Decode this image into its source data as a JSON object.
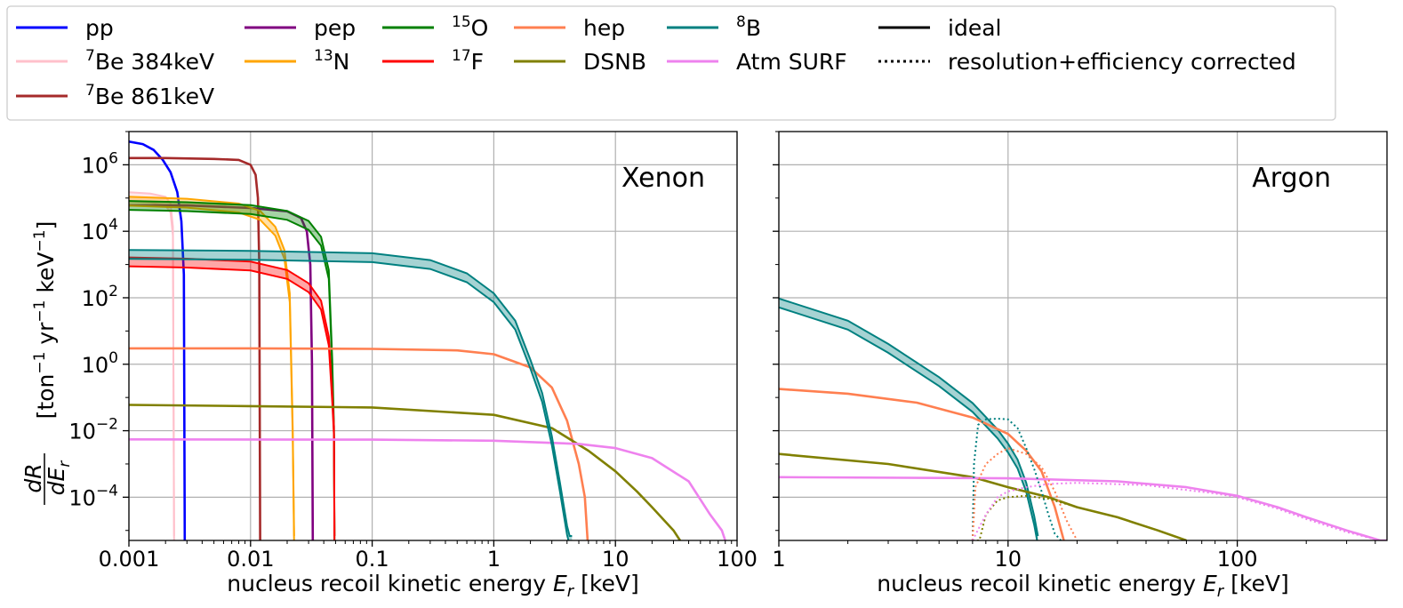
{
  "chart_data": [
    {
      "type": "line",
      "panel": "left",
      "title": "Xenon",
      "xlabel": "nucleus recoil kinetic energy E_r [keV]",
      "ylabel": "dR/dE_r [ton^-1 yr^-1 keV^-1]",
      "xscale": "log",
      "yscale": "log",
      "xlim": [
        0.001,
        100
      ],
      "ylim": [
        5e-06,
        10000000.0
      ],
      "xticks": [
        "0.001",
        "0.01",
        "0.1",
        "1",
        "10",
        "100"
      ],
      "yticks": [
        {
          "base": "10",
          "exp": "6"
        },
        {
          "base": "10",
          "exp": "4"
        },
        {
          "base": "10",
          "exp": "2"
        },
        {
          "base": "10",
          "exp": "0"
        },
        {
          "base": "10",
          "exp": "−2"
        },
        {
          "base": "10",
          "exp": "−4"
        }
      ],
      "grid": true,
      "series": [
        {
          "name": "pp",
          "color": "#0000ff",
          "x": [
            0.001,
            0.0013,
            0.0016,
            0.0019,
            0.0022,
            0.0025,
            0.0027,
            0.00283,
            0.00288
          ],
          "y": [
            5000000.0,
            4200000.0,
            2800000.0,
            1400000.0,
            600000.0,
            150000.0,
            20000.0,
            500.0,
            5e-06
          ]
        },
        {
          "name": "7Be 384keV",
          "color": "#ffc0cb",
          "band": true,
          "x": [
            0.001,
            0.0015,
            0.002,
            0.0022,
            0.0023,
            0.00235
          ],
          "y": [
            110000.0,
            100000.0,
            80000.0,
            50000.0,
            10000.0,
            5e-06
          ]
        },
        {
          "name": "7Be 861keV",
          "color": "#a52a2a",
          "x": [
            0.001,
            0.002,
            0.005,
            0.008,
            0.01,
            0.011,
            0.0115,
            0.0118,
            0.012
          ],
          "y": [
            1600000.0,
            1600000.0,
            1500000.0,
            1400000.0,
            1000000.0,
            500000.0,
            100000.0,
            1000.0,
            5e-06
          ]
        },
        {
          "name": "pep",
          "color": "#800080",
          "x": [
            0.001,
            0.003,
            0.01,
            0.02,
            0.026,
            0.029,
            0.031,
            0.032,
            0.0325
          ],
          "y": [
            60000.0,
            60000.0,
            50000.0,
            40000.0,
            25000.0,
            10000.0,
            1000.0,
            1,
            5e-06
          ]
        },
        {
          "name": "13N",
          "color": "#ffa500",
          "band": true,
          "x": [
            0.001,
            0.003,
            0.008,
            0.012,
            0.016,
            0.019,
            0.021,
            0.0222,
            0.0228
          ],
          "y": [
            80000.0,
            70000.0,
            50000.0,
            30000.0,
            10000.0,
            2000.0,
            100.0,
            0.01,
            5e-06
          ]
        },
        {
          "name": "15O",
          "color": "#008000",
          "band": true,
          "x": [
            0.001,
            0.003,
            0.01,
            0.02,
            0.03,
            0.038,
            0.044,
            0.047,
            0.0485,
            0.049
          ],
          "y": [
            60000.0,
            55000.0,
            45000.0,
            30000.0,
            15000.0,
            5000.0,
            500.0,
            1,
            0.01,
            5e-06
          ]
        },
        {
          "name": "17F",
          "color": "#ff0000",
          "band": true,
          "x": [
            0.001,
            0.003,
            0.01,
            0.02,
            0.03,
            0.038,
            0.044,
            0.047,
            0.0485,
            0.049
          ],
          "y": [
            1200.0,
            1100.0,
            900.0,
            500.0,
            200.0,
            60.0,
            5,
            0.1,
            0.01,
            5e-06
          ]
        },
        {
          "name": "hep",
          "color": "#ff7f50",
          "x": [
            0.001,
            0.01,
            0.1,
            0.5,
            1,
            2,
            3,
            4,
            5,
            5.6,
            5.9
          ],
          "y": [
            3,
            3,
            2.9,
            2.6,
            2,
            0.8,
            0.2,
            0.02,
            0.001,
            0.0001,
            5e-06
          ]
        },
        {
          "name": "DSNB",
          "color": "#808000",
          "x": [
            0.001,
            0.01,
            0.1,
            1,
            3,
            6,
            10,
            15,
            20,
            30,
            34
          ],
          "y": [
            0.06,
            0.055,
            0.05,
            0.03,
            0.012,
            0.0025,
            0.0006,
            0.00015,
            5e-05,
            1e-05,
            5e-06
          ]
        },
        {
          "name": "Atm SURF",
          "color": "#ee82ee",
          "x": [
            0.001,
            0.1,
            1,
            5,
            10,
            20,
            40,
            60,
            75,
            80
          ],
          "y": [
            0.0055,
            0.0054,
            0.005,
            0.004,
            0.003,
            0.0015,
            0.0003,
            3e-05,
            1e-05,
            5e-06
          ]
        },
        {
          "name": "8B",
          "color": "#008080",
          "band": true,
          "x": [
            0.001,
            0.01,
            0.1,
            0.3,
            0.6,
            1,
            1.5,
            2,
            2.5,
            3,
            3.5,
            4,
            4.2,
            4.4
          ],
          "y": [
            2000.0,
            1900.0,
            1600.0,
            1000.0,
            400.0,
            100.0,
            15.0,
            1,
            0.1,
            0.005,
            0.0002,
            1e-05,
            5e-06,
            5e-06
          ]
        }
      ]
    },
    {
      "type": "line",
      "panel": "right",
      "title": "Argon",
      "xlabel": "nucleus recoil kinetic energy E_r [keV]",
      "xscale": "log",
      "yscale": "log",
      "xlim": [
        1,
        450
      ],
      "ylim": [
        5e-06,
        10000000.0
      ],
      "xticks": [
        "1",
        "10",
        "100"
      ],
      "grid": true,
      "series": [
        {
          "name": "8B",
          "color": "#008080",
          "band": true,
          "x": [
            1,
            2,
            3,
            5,
            7,
            9,
            10,
            11,
            12,
            13,
            13.5
          ],
          "y": [
            70,
            15,
            3,
            0.3,
            0.05,
            0.008,
            0.003,
            0.001,
            0.0002,
            2e-05,
            5e-06
          ]
        },
        {
          "name": "hep",
          "color": "#ff7f50",
          "x": [
            1,
            2,
            4,
            7,
            10,
            12,
            14,
            16,
            17.5
          ],
          "y": [
            0.18,
            0.13,
            0.07,
            0.025,
            0.008,
            0.0025,
            0.0006,
            5e-05,
            5e-06
          ]
        },
        {
          "name": "DSNB",
          "color": "#808000",
          "x": [
            1,
            3,
            7,
            10,
            15,
            20,
            30,
            45,
            60
          ],
          "y": [
            0.002,
            0.001,
            0.0004,
            0.0002,
            0.0001,
            5e-05,
            2.5e-05,
            1e-05,
            5e-06
          ]
        },
        {
          "name": "Atm SURF",
          "color": "#ee82ee",
          "x": [
            1,
            10,
            30,
            60,
            100,
            150,
            200,
            300,
            420,
            450
          ],
          "y": [
            0.0004,
            0.00037,
            0.0003,
            0.0002,
            0.00011,
            5e-05,
            2.5e-05,
            1e-05,
            5e-06,
            5e-06
          ]
        },
        {
          "name": "8B corrected",
          "color": "#008080",
          "dotted": true,
          "x": [
            7,
            7.1,
            7.4,
            8,
            9,
            10,
            11,
            12,
            13,
            14,
            15,
            16,
            17
          ],
          "y": [
            5e-06,
            0.001,
            0.015,
            0.022,
            0.023,
            0.022,
            0.012,
            0.003,
            0.0007,
            0.00015,
            3e-05,
            8e-06,
            5e-06
          ]
        },
        {
          "name": "hep corrected",
          "color": "#ff7f50",
          "dotted": true,
          "x": [
            7,
            7.2,
            8,
            9,
            10,
            12,
            14,
            16,
            18,
            20
          ],
          "y": [
            5e-06,
            0.0002,
            0.001,
            0.002,
            0.003,
            0.002,
            0.0008,
            0.00015,
            2e-05,
            5e-06
          ]
        },
        {
          "name": "DSNB corrected",
          "color": "#808000",
          "dotted": true,
          "x": [
            7,
            7.5,
            8,
            9,
            10,
            12,
            15,
            20,
            30,
            45,
            60
          ],
          "y": [
            5e-06,
            5e-06,
            3e-05,
            8e-05,
            0.0001,
            0.00011,
            9e-05,
            5e-05,
            2.5e-05,
            1e-05,
            5e-06
          ]
        },
        {
          "name": "Atm SURF corrected",
          "color": "#ee82ee",
          "dotted": true,
          "x": [
            7,
            8,
            9,
            10,
            12,
            15,
            20,
            40,
            80,
            100,
            150,
            200,
            300,
            420
          ],
          "y": [
            5e-06,
            3e-05,
            0.0001,
            0.00015,
            0.0002,
            0.00025,
            0.00027,
            0.00023,
            0.00013,
            0.0001,
            4.5e-05,
            2.2e-05,
            9e-06,
            5e-06
          ]
        }
      ]
    }
  ],
  "legend": {
    "placement": "top",
    "items": [
      {
        "pre": "",
        "sup": "",
        "rest": "pp",
        "color": "#0000ff",
        "style": "solid"
      },
      {
        "pre": "",
        "sup": "7",
        "rest": "Be 384keV",
        "color": "#ffc0cb",
        "style": "solid"
      },
      {
        "pre": "",
        "sup": "7",
        "rest": "Be 861keV",
        "color": "#a52a2a",
        "style": "solid"
      },
      {
        "pre": "",
        "sup": "",
        "rest": "pep",
        "color": "#800080",
        "style": "solid"
      },
      {
        "pre": "",
        "sup": "13",
        "rest": "N",
        "color": "#ffa500",
        "style": "solid"
      },
      {
        "pre": "",
        "sup": "15",
        "rest": "O",
        "color": "#008000",
        "style": "solid"
      },
      {
        "pre": "",
        "sup": "17",
        "rest": "F",
        "color": "#ff0000",
        "style": "solid"
      },
      {
        "pre": "",
        "sup": "",
        "rest": "hep",
        "color": "#ff7f50",
        "style": "solid"
      },
      {
        "pre": "",
        "sup": "",
        "rest": "DSNB",
        "color": "#808000",
        "style": "solid"
      },
      {
        "pre": "",
        "sup": "8",
        "rest": "B",
        "color": "#008080",
        "style": "solid"
      },
      {
        "pre": "",
        "sup": "",
        "rest": "Atm SURF",
        "color": "#ee82ee",
        "style": "solid"
      },
      {
        "pre": "",
        "sup": "",
        "rest": "ideal",
        "color": "#000000",
        "style": "solid"
      },
      {
        "pre": "",
        "sup": "",
        "rest": "resolution+efficiency corrected",
        "color": "#000000",
        "style": "dotted"
      }
    ]
  },
  "labels": {
    "xlabel_prefix": "nucleus recoil kinetic energy ",
    "xlabel_var": "E",
    "xlabel_sub": "r",
    "xlabel_suffix": " [keV]",
    "ylabel_num": "dR",
    "ylabel_den": "dE",
    "ylabel_den_sub": "r",
    "ylabel_unit_1": "[ton",
    "ylabel_unit_exp1": "−1",
    "ylabel_unit_2": " yr",
    "ylabel_unit_exp2": "−1",
    "ylabel_unit_3": " keV",
    "ylabel_unit_exp3": "−1",
    "ylabel_unit_4": "]"
  }
}
